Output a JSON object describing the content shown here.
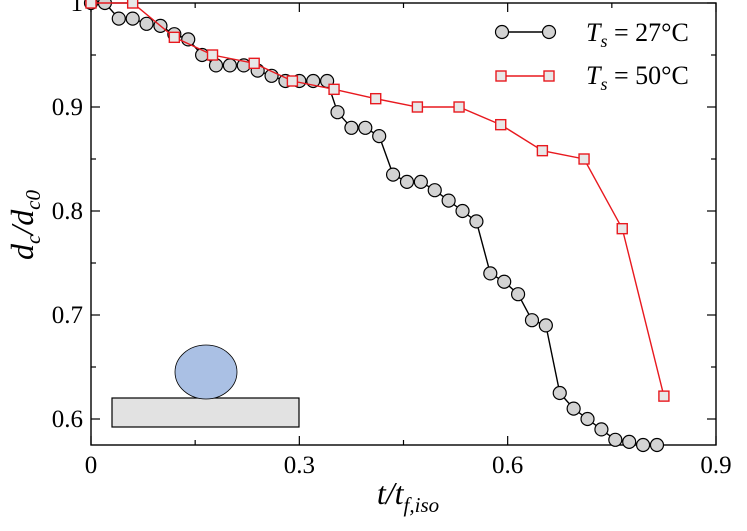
{
  "chart_data": {
    "type": "line",
    "title": "",
    "xlabel_parts": {
      "main": "t/t",
      "sub": "f,iso"
    },
    "ylabel_parts": {
      "d1": "d",
      "s1": "c",
      "mid": "/d",
      "s2": "c0"
    },
    "xlim": [
      0,
      0.9
    ],
    "ylim": [
      0.575,
      1.0
    ],
    "xticks": [
      0,
      0.3,
      0.6,
      0.9
    ],
    "xtick_labels": [
      "0",
      "0.3",
      "0.6",
      "0.9"
    ],
    "yticks": [
      0.6,
      0.7,
      0.8,
      0.9,
      1.0
    ],
    "ytick_labels": [
      "0.6",
      "0.7",
      "0.8",
      "0.9",
      "1"
    ],
    "legend_position": "top-right",
    "series": [
      {
        "name": "T_s = 27°C",
        "legend": {
          "T": "T",
          "sub": "s",
          "rest": " = 27°C"
        },
        "color": "#000000",
        "marker": "circle",
        "marker_fill": "#d3d3d3",
        "x": [
          0.0,
          0.02,
          0.04,
          0.06,
          0.08,
          0.1,
          0.12,
          0.14,
          0.16,
          0.18,
          0.2,
          0.22,
          0.24,
          0.26,
          0.28,
          0.3,
          0.32,
          0.34,
          0.355,
          0.375,
          0.395,
          0.415,
          0.435,
          0.455,
          0.475,
          0.495,
          0.515,
          0.535,
          0.555,
          0.575,
          0.595,
          0.615,
          0.635,
          0.655,
          0.675,
          0.695,
          0.715,
          0.735,
          0.755,
          0.775,
          0.795,
          0.815
        ],
        "y": [
          1.0,
          1.0,
          0.985,
          0.985,
          0.98,
          0.978,
          0.97,
          0.965,
          0.95,
          0.94,
          0.94,
          0.94,
          0.935,
          0.93,
          0.925,
          0.925,
          0.925,
          0.925,
          0.895,
          0.88,
          0.88,
          0.872,
          0.835,
          0.828,
          0.828,
          0.82,
          0.81,
          0.8,
          0.79,
          0.74,
          0.732,
          0.72,
          0.695,
          0.69,
          0.625,
          0.61,
          0.6,
          0.59,
          0.58,
          0.578,
          0.575,
          0.575
        ]
      },
      {
        "name": "T_s = 50°C",
        "legend": {
          "T": "T",
          "sub": "s",
          "rest": " = 50°C"
        },
        "color": "#e8191f",
        "marker": "square",
        "marker_fill": "#e8e8e8",
        "x": [
          0.0,
          0.06,
          0.12,
          0.175,
          0.235,
          0.29,
          0.35,
          0.41,
          0.47,
          0.53,
          0.59,
          0.65,
          0.71,
          0.765,
          0.825
        ],
        "y": [
          1.0,
          1.0,
          0.967,
          0.95,
          0.942,
          0.925,
          0.917,
          0.908,
          0.9,
          0.9,
          0.883,
          0.858,
          0.85,
          0.783,
          0.622
        ]
      }
    ]
  }
}
